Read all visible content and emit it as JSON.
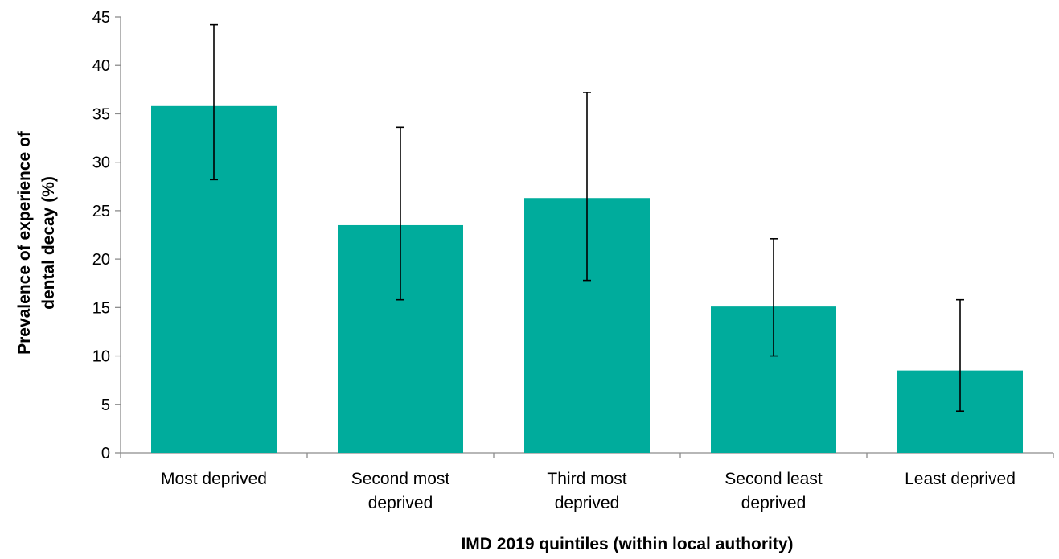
{
  "chart_data": {
    "type": "bar",
    "title": "",
    "xlabel": "IMD 2019 quintiles (within local authority)",
    "ylabel_lines": [
      "Prevalence of experience of",
      "dental decay (%)"
    ],
    "categories": [
      [
        "Most deprived"
      ],
      [
        "Second most",
        "deprived"
      ],
      [
        "Third most",
        "deprived"
      ],
      [
        "Second least",
        "deprived"
      ],
      [
        "Least deprived"
      ]
    ],
    "values": [
      35.8,
      23.5,
      26.3,
      15.1,
      8.5
    ],
    "error_low": [
      28.2,
      15.8,
      17.8,
      10.0,
      4.3
    ],
    "error_high": [
      44.2,
      33.6,
      37.2,
      22.1,
      15.8
    ],
    "ylim": [
      0,
      45
    ],
    "yticks": [
      "0",
      "5",
      "10",
      "15",
      "20",
      "25",
      "30",
      "35",
      "40",
      "45"
    ],
    "grid": false,
    "legend": "none",
    "bar_color": "#00ac9c"
  }
}
